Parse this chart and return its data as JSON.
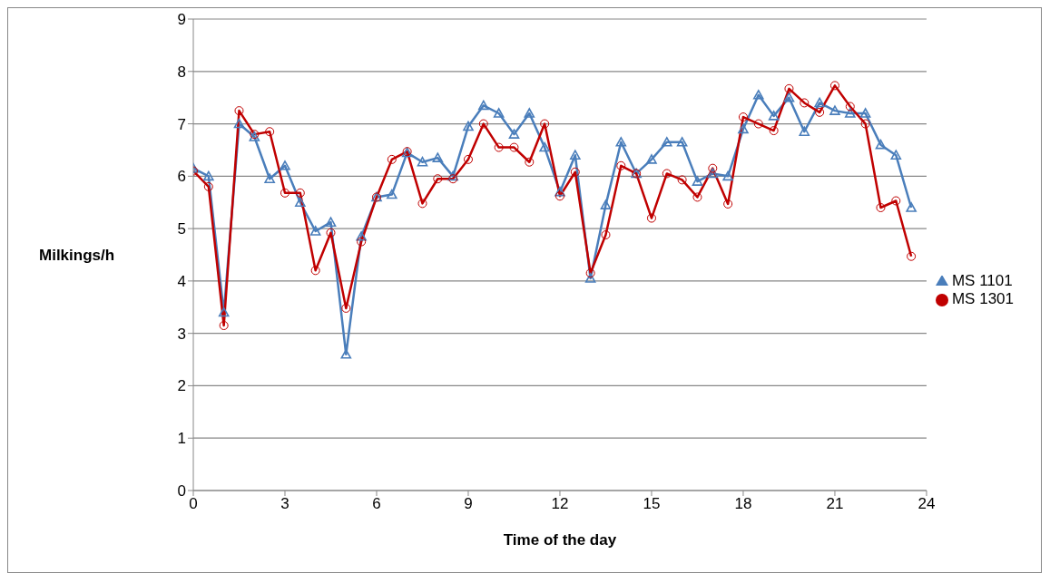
{
  "chart_data": {
    "type": "line",
    "xlabel": "Time of the day",
    "ylabel": "Milkings/h",
    "x": [
      0,
      0.5,
      1,
      1.5,
      2,
      2.5,
      3,
      3.5,
      4,
      4.5,
      5,
      5.5,
      6,
      6.5,
      7,
      7.5,
      8,
      8.5,
      9,
      9.5,
      10,
      10.5,
      11,
      11.5,
      12,
      12.5,
      13,
      13.5,
      14,
      14.5,
      15,
      15.5,
      16,
      16.5,
      17,
      17.5,
      18,
      18.5,
      19,
      19.5,
      20,
      20.5,
      21,
      21.5,
      22,
      22.5,
      23,
      23.5
    ],
    "series": [
      {
        "name": "MS 1101",
        "color": "#4a7ebb",
        "marker": "triangle",
        "values": [
          6.15,
          6.0,
          3.4,
          7.0,
          6.75,
          5.95,
          6.2,
          5.5,
          4.95,
          5.12,
          2.6,
          4.85,
          5.6,
          5.65,
          6.45,
          6.27,
          6.35,
          6.0,
          6.95,
          7.35,
          7.2,
          6.8,
          7.2,
          6.55,
          5.7,
          6.4,
          4.05,
          5.45,
          6.65,
          6.05,
          6.32,
          6.65,
          6.65,
          5.9,
          6.05,
          6.0,
          6.9,
          7.55,
          7.15,
          7.5,
          6.85,
          7.4,
          7.25,
          7.2,
          7.2,
          6.6,
          6.4,
          5.4
        ]
      },
      {
        "name": "MS 1301",
        "color": "#c00000",
        "marker": "circle",
        "values": [
          6.1,
          5.8,
          3.15,
          7.25,
          6.8,
          6.85,
          5.68,
          5.68,
          4.2,
          4.92,
          3.48,
          4.75,
          5.6,
          6.32,
          6.47,
          5.48,
          5.95,
          5.95,
          6.32,
          7.0,
          6.55,
          6.55,
          6.27,
          7.0,
          5.62,
          6.08,
          4.15,
          4.88,
          6.2,
          6.05,
          5.2,
          6.05,
          5.93,
          5.6,
          6.15,
          5.47,
          7.13,
          7.0,
          6.87,
          7.67,
          7.4,
          7.22,
          7.73,
          7.33,
          7.0,
          5.4,
          5.53,
          4.47
        ]
      }
    ],
    "xlim": [
      0,
      24
    ],
    "xticks": [
      0,
      3,
      6,
      9,
      12,
      15,
      18,
      21,
      24
    ],
    "ylim": [
      0,
      9
    ],
    "yticks": [
      0,
      1,
      2,
      3,
      4,
      5,
      6,
      7,
      8,
      9
    ],
    "grid": "y",
    "legend": "right",
    "line_style": "solid"
  }
}
